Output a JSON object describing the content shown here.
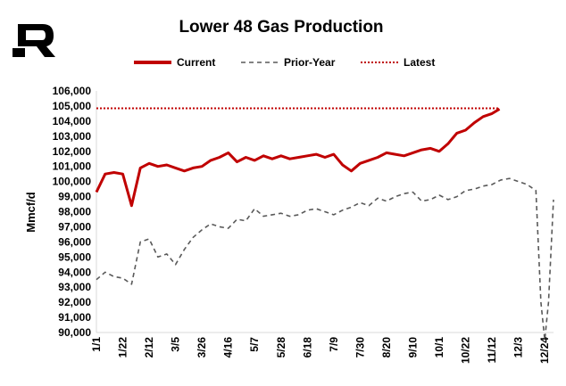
{
  "chart_data": {
    "type": "line",
    "title": "Lower 48 Gas Production",
    "ylabel": "Mmcf/d",
    "xlabel": "",
    "ylim": [
      90000,
      106000
    ],
    "y_ticks": [
      "90,000",
      "91,000",
      "92,000",
      "93,000",
      "94,000",
      "95,000",
      "96,000",
      "97,000",
      "98,000",
      "99,000",
      "100,000",
      "101,000",
      "102,000",
      "103,000",
      "104,000",
      "105,000",
      "106,000"
    ],
    "x_ticks": [
      "1/1",
      "1/22",
      "2/12",
      "3/5",
      "3/26",
      "4/16",
      "5/7",
      "5/28",
      "6/18",
      "7/9",
      "7/30",
      "8/20",
      "9/10",
      "10/1",
      "10/22",
      "11/12",
      "12/3",
      "12/24"
    ],
    "grid": false,
    "legend_position": "top",
    "series": [
      {
        "name": "Current",
        "color": "#C00000",
        "style": "solid",
        "x": [
          1,
          8,
          15,
          22,
          29,
          36,
          43,
          50,
          57,
          64,
          71,
          78,
          85,
          92,
          99,
          106,
          113,
          120,
          127,
          134,
          141,
          148,
          155,
          162,
          169,
          176,
          183,
          190,
          197,
          204,
          211,
          218,
          225,
          232,
          239,
          246,
          253,
          260,
          267,
          274,
          281,
          288,
          295,
          302,
          309,
          316,
          322
        ],
        "values": [
          99300,
          100500,
          100600,
          100500,
          98400,
          100900,
          101200,
          101000,
          101100,
          100900,
          100700,
          100900,
          101000,
          101400,
          101600,
          101900,
          101300,
          101600,
          101400,
          101700,
          101500,
          101700,
          101500,
          101600,
          101700,
          101800,
          101600,
          101800,
          101100,
          100700,
          101200,
          101400,
          101600,
          101900,
          101800,
          101700,
          101900,
          102100,
          102200,
          102000,
          102500,
          103200,
          103400,
          103900,
          104300,
          104500,
          104800
        ]
      },
      {
        "name": "Prior-Year",
        "color": "#595959",
        "style": "dashed",
        "x": [
          1,
          8,
          15,
          22,
          29,
          36,
          43,
          50,
          57,
          64,
          71,
          78,
          85,
          92,
          99,
          106,
          113,
          120,
          127,
          134,
          141,
          148,
          155,
          162,
          169,
          176,
          183,
          190,
          197,
          204,
          211,
          218,
          225,
          232,
          239,
          246,
          253,
          260,
          267,
          274,
          281,
          288,
          295,
          302,
          309,
          316,
          323,
          330,
          337,
          344,
          351,
          355,
          358,
          361,
          365
        ],
        "values": [
          93500,
          94000,
          93700,
          93600,
          93200,
          96000,
          96200,
          95000,
          95200,
          94500,
          95500,
          96300,
          96800,
          97200,
          97000,
          96900,
          97500,
          97400,
          98200,
          97700,
          97800,
          97900,
          97700,
          97800,
          98100,
          98200,
          98000,
          97800,
          98100,
          98300,
          98600,
          98400,
          98900,
          98700,
          99000,
          99200,
          99300,
          98700,
          98800,
          99100,
          98800,
          99000,
          99400,
          99500,
          99700,
          99800,
          100100,
          100200,
          100000,
          99800,
          99400,
          92000,
          89500,
          92000,
          98800
        ]
      },
      {
        "name": "Latest",
        "color": "#C00000",
        "style": "dotted",
        "x": [
          1,
          322
        ],
        "values": [
          104850,
          104850
        ]
      }
    ]
  }
}
